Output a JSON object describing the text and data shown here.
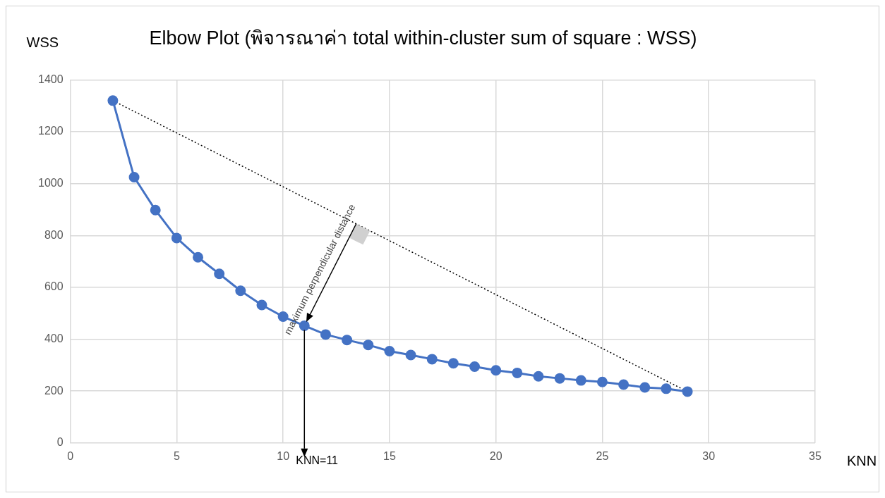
{
  "chart_data": {
    "type": "line",
    "title": "Elbow Plot (พิจารณาค่า total within-cluster sum of square : WSS)",
    "xlabel": "KNN",
    "ylabel": "WSS",
    "x": [
      2,
      3,
      4,
      5,
      6,
      7,
      8,
      9,
      10,
      11,
      12,
      13,
      14,
      15,
      16,
      17,
      18,
      19,
      20,
      21,
      22,
      23,
      24,
      25,
      26,
      27,
      28,
      29
    ],
    "series": [
      {
        "color": "#4472c4",
        "values": [
          1320,
          1025,
          898,
          790,
          716,
          652,
          587,
          532,
          487,
          452,
          418,
          397,
          378,
          354,
          339,
          323,
          307,
          294,
          280,
          270,
          257,
          249,
          241,
          235,
          225,
          214,
          209,
          198
        ]
      },
      {
        "color": "#000000",
        "x": [
          2,
          29
        ],
        "values": [
          1320,
          198
        ],
        "line_style": "dotted",
        "marker": "none"
      }
    ],
    "xlim": [
      0,
      35
    ],
    "xticks": [
      0,
      5,
      10,
      15,
      20,
      25,
      30,
      35
    ],
    "ylim": [
      0,
      1400
    ],
    "yticks": [
      0,
      200,
      400,
      600,
      800,
      1000,
      1200,
      1400
    ],
    "grid": true,
    "marker": "circle",
    "line_style": "solid",
    "annotations": [
      {
        "text": "maximum perpendicular distance",
        "x": 11,
        "y": 452
      },
      "KNN=11"
    ]
  }
}
